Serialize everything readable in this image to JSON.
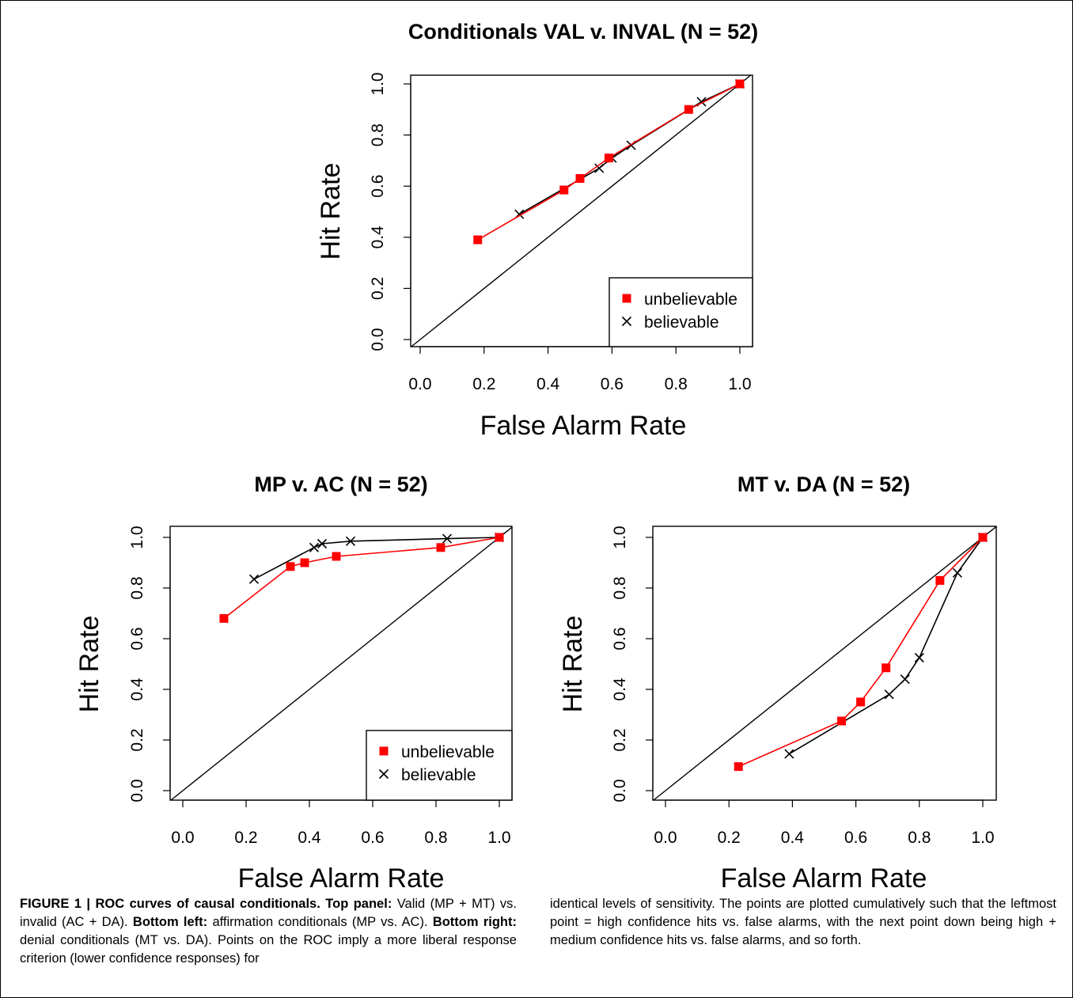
{
  "chart_data": [
    {
      "type": "line",
      "title": "Conditionals VAL v. INVAL (N = 52)",
      "xlabel": "False Alarm Rate",
      "ylabel": "Hit Rate",
      "xlim": [
        0,
        1
      ],
      "ylim": [
        0,
        1
      ],
      "xticks": [
        "0.0",
        "0.2",
        "0.4",
        "0.6",
        "0.8",
        "1.0"
      ],
      "yticks": [
        "0.0",
        "0.2",
        "0.4",
        "0.6",
        "0.8",
        "1.0"
      ],
      "diagonal": true,
      "legend_position": "bottom-right",
      "series": [
        {
          "name": "unbelievable",
          "marker": "square",
          "color": "#ff0000",
          "x": [
            0.18,
            0.45,
            0.5,
            0.59,
            0.84,
            1.0
          ],
          "y": [
            0.39,
            0.585,
            0.63,
            0.71,
            0.9,
            1.0
          ]
        },
        {
          "name": "believable",
          "marker": "x",
          "color": "#000000",
          "x": [
            0.31,
            0.56,
            0.6,
            0.66,
            0.88,
            1.0
          ],
          "y": [
            0.49,
            0.67,
            0.71,
            0.76,
            0.93,
            1.0
          ]
        }
      ]
    },
    {
      "type": "line",
      "title": "MP v. AC (N = 52)",
      "xlabel": "False Alarm Rate",
      "ylabel": "Hit Rate",
      "xlim": [
        0,
        1
      ],
      "ylim": [
        0,
        1
      ],
      "xticks": [
        "0.0",
        "0.2",
        "0.4",
        "0.6",
        "0.8",
        "1.0"
      ],
      "yticks": [
        "0.0",
        "0.2",
        "0.4",
        "0.6",
        "0.8",
        "1.0"
      ],
      "diagonal": true,
      "legend_position": "bottom-right",
      "series": [
        {
          "name": "unbelievable",
          "marker": "square",
          "color": "#ff0000",
          "x": [
            0.13,
            0.34,
            0.385,
            0.485,
            0.815,
            1.0
          ],
          "y": [
            0.68,
            0.885,
            0.9,
            0.925,
            0.96,
            1.0
          ]
        },
        {
          "name": "believable",
          "marker": "x",
          "color": "#000000",
          "x": [
            0.225,
            0.415,
            0.44,
            0.53,
            0.835,
            1.0
          ],
          "y": [
            0.835,
            0.96,
            0.975,
            0.985,
            0.995,
            1.0
          ]
        }
      ]
    },
    {
      "type": "line",
      "title": "MT v. DA (N = 52)",
      "xlabel": "False Alarm Rate",
      "ylabel": "Hit Rate",
      "xlim": [
        0,
        1
      ],
      "ylim": [
        0,
        1
      ],
      "xticks": [
        "0.0",
        "0.2",
        "0.4",
        "0.6",
        "0.8",
        "1.0"
      ],
      "yticks": [
        "0.0",
        "0.2",
        "0.4",
        "0.6",
        "0.8",
        "1.0"
      ],
      "diagonal": true,
      "legend_position": "none",
      "series": [
        {
          "name": "unbelievable",
          "marker": "square",
          "color": "#ff0000",
          "x": [
            0.23,
            0.555,
            0.615,
            0.695,
            0.865,
            1.0
          ],
          "y": [
            0.095,
            0.275,
            0.35,
            0.485,
            0.83,
            1.0
          ]
        },
        {
          "name": "believable",
          "marker": "x",
          "color": "#000000",
          "x": [
            0.39,
            0.705,
            0.755,
            0.8,
            0.92,
            1.0
          ],
          "y": [
            0.145,
            0.38,
            0.44,
            0.525,
            0.86,
            1.0
          ]
        }
      ]
    }
  ],
  "caption": {
    "label": "FIGURE 1 | ROC curves of causal conditionals.",
    "top_head": "Top panel:",
    "top_text": "Valid (MP + MT) vs. invalid (AC + DA).",
    "bl_head": "Bottom left:",
    "bl_text": "affirmation conditionals (MP vs. AC).",
    "br_head": "Bottom right:",
    "br_text": "denial conditionals (MT vs. DA). Points on the ROC imply a more liberal response criterion (lower confidence responses) for",
    "right_col": "identical levels of sensitivity. The points are plotted cumulatively such that the leftmost point = high confidence hits vs. false alarms, with the next point down being high + medium confidence hits vs. false alarms, and so forth."
  }
}
